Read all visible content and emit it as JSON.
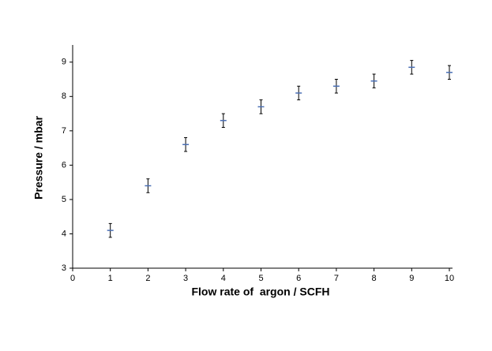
{
  "chart_data": {
    "type": "scatter",
    "xlabel": "Flow rate of  argon / SCFH",
    "ylabel": "Pressure / mbar",
    "x": [
      1,
      2,
      3,
      4,
      5,
      6,
      7,
      8,
      9,
      10
    ],
    "values": [
      4.1,
      5.4,
      6.6,
      7.3,
      7.7,
      8.1,
      8.3,
      8.45,
      8.85,
      8.7
    ],
    "errors": [
      0.2,
      0.2,
      0.2,
      0.2,
      0.2,
      0.2,
      0.2,
      0.2,
      0.2,
      0.2
    ],
    "color": "#4a6fb5",
    "xlim": [
      0,
      10
    ],
    "xticks": [
      0,
      1,
      2,
      3,
      4,
      5,
      6,
      7,
      8,
      9,
      10
    ],
    "ylim": [
      3,
      9.5
    ],
    "yticks": [
      3,
      4,
      5,
      6,
      7,
      8,
      9
    ]
  }
}
